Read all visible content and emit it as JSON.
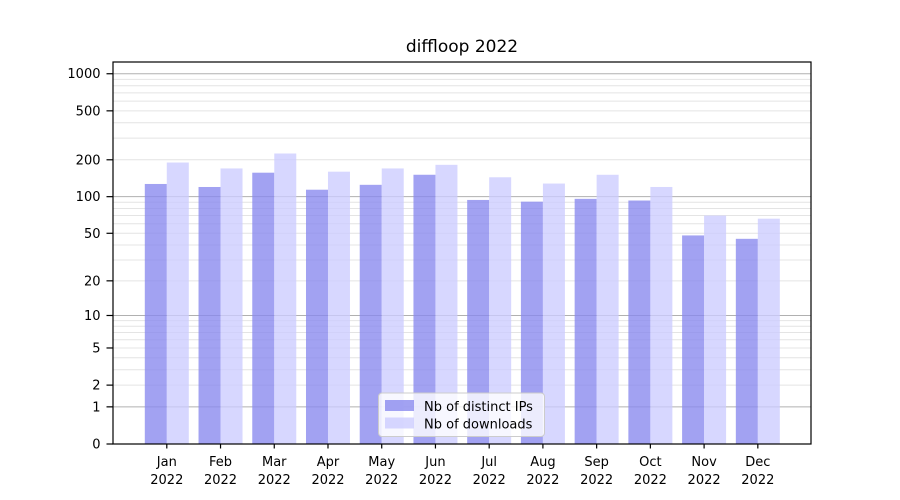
{
  "chart_data": {
    "type": "bar",
    "title": "diffloop 2022",
    "categories": [
      "Jan 2022",
      "Feb 2022",
      "Mar 2022",
      "Apr 2022",
      "May 2022",
      "Jun 2022",
      "Jul 2022",
      "Aug 2022",
      "Sep 2022",
      "Oct 2022",
      "Nov 2022",
      "Dec 2022"
    ],
    "x_tick_months": [
      "Jan",
      "Feb",
      "Mar",
      "Apr",
      "May",
      "Jun",
      "Jul",
      "Aug",
      "Sep",
      "Oct",
      "Nov",
      "Dec"
    ],
    "x_tick_year": "2022",
    "series": [
      {
        "name": "Nb of distinct IPs",
        "color": "#8888ee",
        "values": [
          127,
          120,
          157,
          114,
          125,
          151,
          94,
          91,
          96,
          93,
          48,
          45
        ]
      },
      {
        "name": "Nb of downloads",
        "color": "#ccccff",
        "values": [
          190,
          170,
          225,
          160,
          170,
          182,
          144,
          128,
          151,
          120,
          70,
          66
        ]
      }
    ],
    "bar_opacity": 0.78,
    "y_scale": "log10(value+1)",
    "ylim": [
      0,
      1250
    ],
    "y_ticks": [
      0,
      1,
      2,
      5,
      10,
      20,
      50,
      100,
      200,
      500,
      1000
    ],
    "y_major_gridlines": [
      1,
      10,
      100,
      1000
    ],
    "y_minor_gridlines": [
      2,
      3,
      4,
      5,
      6,
      7,
      8,
      9,
      20,
      30,
      40,
      50,
      60,
      70,
      80,
      90,
      200,
      300,
      400,
      500,
      600,
      700,
      800,
      900
    ],
    "xlabel": "",
    "ylabel": "",
    "grid": "on",
    "legend": {
      "position": "lower-center",
      "entries": [
        "Nb of distinct IPs",
        "Nb of downloads"
      ]
    },
    "colors": {
      "distinct_ips": "#8888ee",
      "downloads": "#ccccff",
      "major_grid": "#b0b0b0",
      "minor_grid": "#e4e4e4",
      "axis": "#000000",
      "legend_border": "#cccccc",
      "background": "#ffffff"
    }
  }
}
